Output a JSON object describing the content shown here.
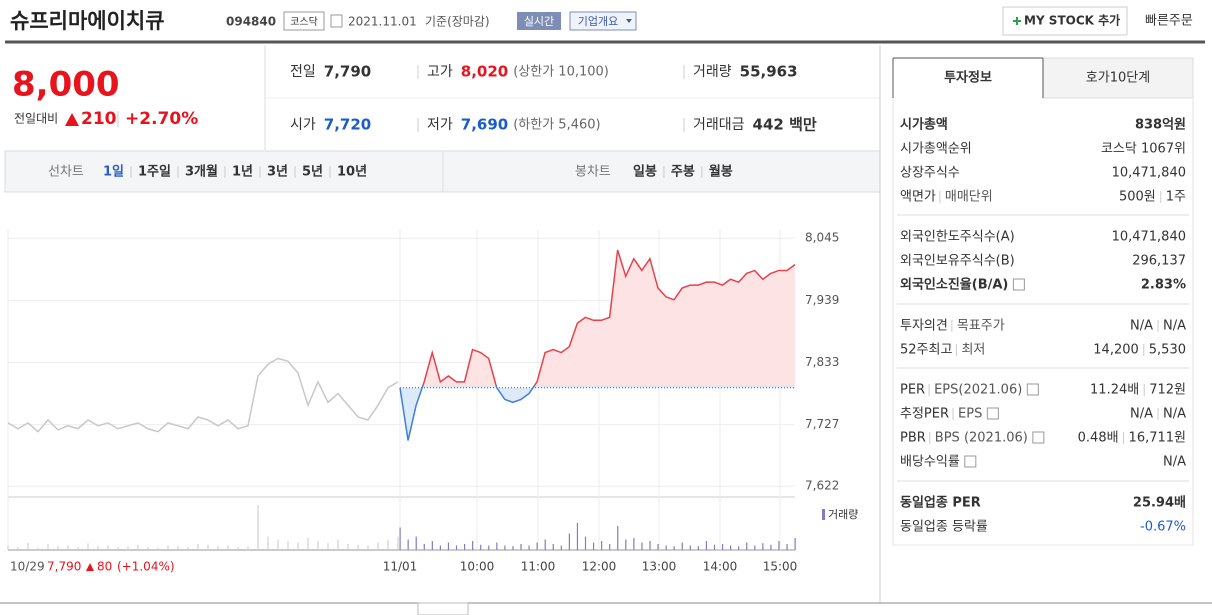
{
  "header": {
    "name": "슈프리마에이치큐",
    "code": "094840",
    "market": "코스닥",
    "date": "2021.11.01",
    "basis": "기준(장마감)",
    "badge": "실시간",
    "company_button": "기업개요",
    "mystock_button": "MY STOCK 추가",
    "quick_order": "빠른주문"
  },
  "price": {
    "current": "8,000",
    "change_label": "전일대비",
    "change": "210",
    "change_pct": "+2.70%"
  },
  "summary": [
    [
      {
        "label": "전일",
        "value": "7,790"
      },
      {
        "label": "고가",
        "value": "8,020",
        "note": "(상한가 10,100)"
      },
      {
        "label": "거래량",
        "value": "55,963"
      }
    ],
    [
      {
        "label": "시가",
        "value": "7,720"
      },
      {
        "label": "저가",
        "value": "7,690",
        "note": "(하한가 5,460)"
      },
      {
        "label": "거래대금",
        "value": "442 백만"
      }
    ]
  ],
  "tabs": {
    "line_label": "선차트",
    "line": [
      "1일",
      "1주일",
      "3개월",
      "1년",
      "3년",
      "5년",
      "10년"
    ],
    "candle_label": "봉차트",
    "candle": [
      "일봉",
      "주봉",
      "월봉"
    ]
  },
  "chart_data": {
    "type": "line",
    "ylim": [
      7607,
      8059
    ],
    "yticks": [
      {
        "value": 8045,
        "label": "8,045"
      },
      {
        "value": 7939,
        "label": "7,939"
      },
      {
        "value": 7833,
        "label": "7,833"
      },
      {
        "value": 7727,
        "label": "7,727"
      },
      {
        "value": 7622,
        "label": "7,622"
      }
    ],
    "xticks": [
      "11/01",
      "10:00",
      "11:00",
      "12:00",
      "13:00",
      "14:00",
      "15:00"
    ],
    "baseline": 7790,
    "prev_day": {
      "color": "#c8c8c8",
      "values": [
        7730,
        7720,
        7730,
        7715,
        7735,
        7718,
        7725,
        7720,
        7735,
        7725,
        7730,
        7720,
        7725,
        7730,
        7720,
        7715,
        7730,
        7725,
        7720,
        7740,
        7735,
        7725,
        7735,
        7720,
        7725,
        7810,
        7830,
        7840,
        7835,
        7815,
        7760,
        7800,
        7765,
        7780,
        7760,
        7740,
        7735,
        7760,
        7790,
        7800
      ],
      "volume": [
        300,
        200,
        500,
        150,
        400,
        250,
        300,
        200,
        450,
        250,
        300,
        200,
        250,
        350,
        200,
        150,
        300,
        250,
        200,
        400,
        350,
        250,
        300,
        200,
        250,
        3000,
        900,
        700,
        600,
        500,
        800,
        600,
        500,
        700,
        400,
        350,
        300,
        500,
        700,
        900
      ]
    },
    "today": {
      "up_color": "#e8414a",
      "down_color": "#3d7fd9",
      "values": [
        7790,
        7700,
        7760,
        7800,
        7850,
        7800,
        7810,
        7800,
        7800,
        7855,
        7850,
        7840,
        7790,
        7770,
        7765,
        7770,
        7780,
        7800,
        7850,
        7855,
        7850,
        7860,
        7900,
        7910,
        7905,
        7905,
        7910,
        8025,
        7980,
        8010,
        7990,
        8010,
        7960,
        7945,
        7940,
        7960,
        7965,
        7965,
        7970,
        7970,
        7965,
        7975,
        7970,
        7985,
        7990,
        7975,
        7985,
        7990,
        7990,
        8000
      ],
      "volume": [
        1500,
        700,
        900,
        400,
        600,
        300,
        500,
        300,
        400,
        600,
        350,
        300,
        500,
        300,
        250,
        400,
        300,
        500,
        700,
        400,
        300,
        1100,
        1800,
        900,
        500,
        600,
        400,
        1600,
        700,
        800,
        500,
        600,
        400,
        300,
        250,
        500,
        300,
        250,
        600,
        350,
        400,
        300,
        250,
        500,
        300,
        450,
        350,
        600,
        400,
        800
      ]
    },
    "volume_label": "거래량",
    "prev": {
      "date": "10/29",
      "close": "7,790",
      "change": "80",
      "change_pct": "(+1.04%)"
    }
  },
  "info": {
    "tabs": [
      "투자정보",
      "호가10단계"
    ],
    "groups": [
      [
        {
          "label": [
            "시가총액"
          ],
          "value": [
            "838억원"
          ]
        },
        {
          "label": [
            "시가총액순위"
          ],
          "value": [
            "코스닥 1067위"
          ]
        },
        {
          "label": [
            "상장주식수"
          ],
          "value": [
            "10,471,840"
          ]
        },
        {
          "label": [
            "액면가",
            "매매단위"
          ],
          "value": [
            "500원",
            "1주"
          ]
        }
      ],
      [
        {
          "label": [
            "외국인한도주식수(A)"
          ],
          "value": [
            "10,471,840"
          ]
        },
        {
          "label": [
            "외국인보유주식수(B)"
          ],
          "value": [
            "296,137"
          ]
        },
        {
          "label": [
            "외국인소진율(B/A)"
          ],
          "value": [
            "2.83%"
          ]
        }
      ],
      [
        {
          "label": [
            "투자의견",
            "목표주가"
          ],
          "value": [
            "N/A",
            "N/A"
          ]
        },
        {
          "label": [
            "52주최고",
            "최저"
          ],
          "value": [
            "14,200",
            "5,530"
          ]
        }
      ],
      [
        {
          "label": [
            "PER",
            "EPS(2021.06)"
          ],
          "value": [
            "11.24배",
            "712원"
          ]
        },
        {
          "label": [
            "추정PER",
            "EPS"
          ],
          "value": [
            "N/A",
            "N/A"
          ]
        },
        {
          "label": [
            "PBR",
            "BPS (2021.06)"
          ],
          "value": [
            "0.48배",
            "16,711원"
          ]
        },
        {
          "label": [
            "배당수익률"
          ],
          "value": [
            "N/A"
          ]
        }
      ],
      [
        {
          "label": [
            "동일업종 PER"
          ],
          "value": [
            "25.94배"
          ]
        },
        {
          "label": [
            "동일업종 등락률"
          ],
          "value": [
            "-0.67%"
          ]
        }
      ]
    ]
  }
}
